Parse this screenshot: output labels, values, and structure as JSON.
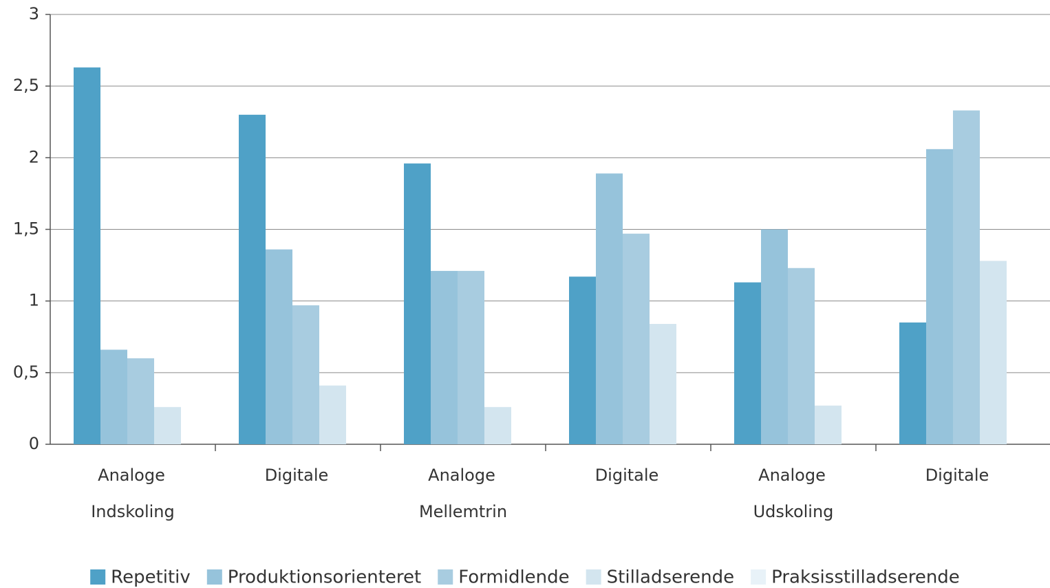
{
  "chart_data": {
    "type": "bar",
    "categories": [
      "Analoge",
      "Digitale",
      "Analoge",
      "Digitale",
      "Analoge",
      "Digitale"
    ],
    "group_labels": [
      "Indskoling",
      "Mellemtrin",
      "Udskoling"
    ],
    "series": [
      {
        "name": "Repetitiv",
        "color": "#4fa1c7",
        "values": [
          2.63,
          2.3,
          1.96,
          1.17,
          1.13,
          0.85
        ]
      },
      {
        "name": "Produktionsorienteret",
        "color": "#96c3db",
        "values": [
          0.66,
          1.36,
          1.21,
          1.89,
          1.5,
          2.06
        ]
      },
      {
        "name": "Formidlende",
        "color": "#a8cce0",
        "values": [
          0.6,
          0.97,
          1.21,
          1.47,
          1.23,
          2.33
        ]
      },
      {
        "name": "Stilladserende",
        "color": "#d3e5ef",
        "values": [
          0.26,
          0.41,
          0.26,
          0.84,
          0.27,
          1.28
        ]
      },
      {
        "name": "Praksisstilladserende",
        "color": "#e8f2f8",
        "values": [
          0,
          0,
          0,
          0,
          0,
          0
        ]
      }
    ],
    "ylim": [
      0,
      3
    ],
    "yticks": [
      0,
      {
        "value": 0.5,
        "label": "0,5"
      },
      1,
      {
        "value": 1.5,
        "label": "1,5"
      },
      2,
      {
        "value": 2.5,
        "label": "2,5"
      },
      3
    ],
    "grid": true
  }
}
